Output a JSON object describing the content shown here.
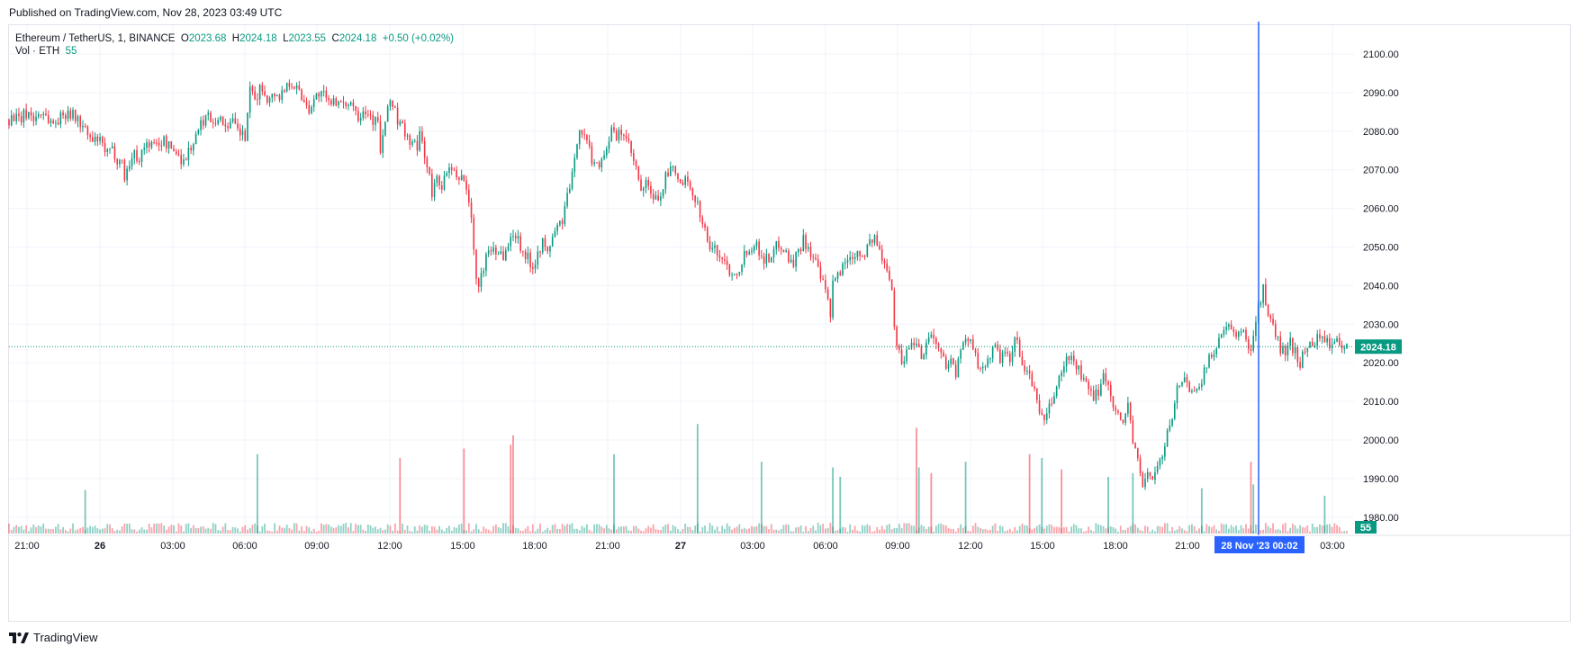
{
  "published": "Published on TradingView.com, Nov 28, 2023 03:49 UTC",
  "footer": {
    "brand": "TradingView",
    "logo_icon": "tradingview-logo-icon"
  },
  "legend": {
    "symbol": "Ethereum / TetherUS, 1, BINANCE",
    "open_label": "O",
    "open": "2023.68",
    "high_label": "H",
    "high": "2024.18",
    "low_label": "L",
    "low": "2023.55",
    "close_label": "C",
    "close": "2024.18",
    "change": "+0.50 (+0.02%)",
    "vol_label": "Vol · ETH",
    "vol_value": "55"
  },
  "colors": {
    "up": "#089981",
    "down": "#f23645",
    "crosshair": "#2962ff",
    "grid": "#f0f3fa",
    "text": "#131722"
  },
  "chart_data": {
    "type": "candlestick",
    "interval": "1 minute",
    "y_axis": {
      "ticks": [
        "1980.00",
        "1990.00",
        "2000.00",
        "2010.00",
        "2020.00",
        "2030.00",
        "2040.00",
        "2050.00",
        "2060.00",
        "2070.00",
        "2080.00",
        "2090.00",
        "2100.00"
      ],
      "min": 1975,
      "max": 2104,
      "side": "right"
    },
    "x_axis": {
      "ticks": [
        "21:00",
        "26",
        "03:00",
        "06:00",
        "09:00",
        "12:00",
        "15:00",
        "18:00",
        "21:00",
        "27",
        "03:00",
        "06:00",
        "09:00",
        "12:00",
        "15:00",
        "18:00",
        "21:00",
        "03:00"
      ],
      "bold": [
        "26",
        "27"
      ]
    },
    "last_price": "2024.18",
    "last_volume": "55",
    "crosshair_label": "28 Nov '23   00:02",
    "price_path": [
      [
        0,
        2083
      ],
      [
        2,
        2084
      ],
      [
        4,
        2082.5
      ],
      [
        6,
        2084
      ],
      [
        8,
        2085
      ],
      [
        10,
        2083
      ],
      [
        12,
        2084.5
      ],
      [
        14,
        2085
      ],
      [
        16,
        2083
      ],
      [
        18,
        2082
      ],
      [
        20,
        2083
      ],
      [
        22,
        2084
      ],
      [
        24,
        2085.5
      ],
      [
        26,
        2084
      ],
      [
        28,
        2083
      ],
      [
        30,
        2081
      ],
      [
        32,
        2079
      ],
      [
        34,
        2077
      ],
      [
        36,
        2078
      ],
      [
        38,
        2076
      ],
      [
        40,
        2074
      ],
      [
        42,
        2075
      ],
      [
        44,
        2073
      ],
      [
        46,
        2072
      ],
      [
        47,
        2068
      ],
      [
        49,
        2072
      ],
      [
        51,
        2074
      ],
      [
        53,
        2073
      ],
      [
        55,
        2076
      ],
      [
        57,
        2077
      ],
      [
        59,
        2076
      ],
      [
        61,
        2077
      ],
      [
        63,
        2077.5
      ],
      [
        65,
        2076
      ],
      [
        67,
        2075
      ],
      [
        69,
        2074
      ],
      [
        71,
        2072
      ],
      [
        73,
        2075
      ],
      [
        75,
        2077
      ],
      [
        77,
        2080
      ],
      [
        79,
        2083
      ],
      [
        81,
        2084
      ],
      [
        83,
        2083
      ],
      [
        85,
        2083.5
      ],
      [
        87,
        2082
      ],
      [
        89,
        2082
      ],
      [
        91,
        2082
      ],
      [
        93,
        2080
      ],
      [
        95,
        2079
      ],
      [
        96,
        2078
      ],
      [
        97,
        2085
      ],
      [
        98,
        2090
      ],
      [
        100,
        2088
      ],
      [
        102,
        2091
      ],
      [
        104,
        2090
      ],
      [
        106,
        2088
      ],
      [
        108,
        2090
      ],
      [
        110,
        2089
      ],
      [
        112,
        2091
      ],
      [
        114,
        2093
      ],
      [
        116,
        2092
      ],
      [
        118,
        2090
      ],
      [
        120,
        2088
      ],
      [
        122,
        2086
      ],
      [
        124,
        2088
      ],
      [
        126,
        2090
      ],
      [
        128,
        2089
      ],
      [
        130,
        2087
      ],
      [
        132,
        2089
      ],
      [
        134,
        2087
      ],
      [
        136,
        2086
      ],
      [
        138,
        2088
      ],
      [
        140,
        2087
      ],
      [
        142,
        2084
      ],
      [
        144,
        2086
      ],
      [
        146,
        2085
      ],
      [
        148,
        2083
      ],
      [
        150,
        2082
      ],
      [
        151,
        2075
      ],
      [
        153,
        2082
      ],
      [
        155,
        2088
      ],
      [
        157,
        2086
      ],
      [
        158,
        2082
      ],
      [
        160,
        2081
      ],
      [
        162,
        2078
      ],
      [
        164,
        2077
      ],
      [
        166,
        2075
      ],
      [
        167,
        2080
      ],
      [
        169,
        2074
      ],
      [
        171,
        2068
      ],
      [
        172,
        2063
      ],
      [
        174,
        2068
      ],
      [
        176,
        2066
      ],
      [
        178,
        2069
      ],
      [
        180,
        2070
      ],
      [
        182,
        2067
      ],
      [
        184,
        2069
      ],
      [
        186,
        2065
      ],
      [
        188,
        2058
      ],
      [
        189,
        2048
      ],
      [
        190,
        2043
      ],
      [
        191,
        2039
      ],
      [
        193,
        2045
      ],
      [
        195,
        2049
      ],
      [
        197,
        2050
      ],
      [
        199,
        2049
      ],
      [
        201,
        2048
      ],
      [
        203,
        2050
      ],
      [
        205,
        2054
      ],
      [
        207,
        2052
      ],
      [
        209,
        2049
      ],
      [
        211,
        2047
      ],
      [
        213,
        2045
      ],
      [
        215,
        2049
      ],
      [
        217,
        2051
      ],
      [
        219,
        2048
      ],
      [
        221,
        2053
      ],
      [
        223,
        2055
      ],
      [
        225,
        2057
      ],
      [
        227,
        2063
      ],
      [
        229,
        2068
      ],
      [
        230,
        2072
      ],
      [
        231,
        2078
      ],
      [
        232,
        2081
      ],
      [
        233,
        2080
      ],
      [
        235,
        2077
      ],
      [
        237,
        2073
      ],
      [
        239,
        2071
      ],
      [
        241,
        2073
      ],
      [
        243,
        2076
      ],
      [
        245,
        2080
      ],
      [
        247,
        2078
      ],
      [
        249,
        2080
      ],
      [
        251,
        2078
      ],
      [
        253,
        2074
      ],
      [
        255,
        2070
      ],
      [
        257,
        2064
      ],
      [
        259,
        2066
      ],
      [
        261,
        2064
      ],
      [
        263,
        2062
      ],
      [
        265,
        2064
      ],
      [
        267,
        2068
      ],
      [
        269,
        2070
      ],
      [
        271,
        2069
      ],
      [
        273,
        2066
      ],
      [
        275,
        2067
      ],
      [
        277,
        2064
      ],
      [
        279,
        2063
      ],
      [
        281,
        2059
      ],
      [
        283,
        2054
      ],
      [
        285,
        2050
      ],
      [
        287,
        2049
      ],
      [
        289,
        2048
      ],
      [
        291,
        2046
      ],
      [
        293,
        2044
      ],
      [
        295,
        2043
      ],
      [
        297,
        2045
      ],
      [
        299,
        2048
      ],
      [
        301,
        2050
      ],
      [
        303,
        2051
      ],
      [
        305,
        2049
      ],
      [
        307,
        2047
      ],
      [
        309,
        2047
      ],
      [
        311,
        2049
      ],
      [
        313,
        2051
      ],
      [
        315,
        2050
      ],
      [
        317,
        2047
      ],
      [
        319,
        2046
      ],
      [
        321,
        2049
      ],
      [
        323,
        2052
      ],
      [
        325,
        2050
      ],
      [
        327,
        2047
      ],
      [
        329,
        2044
      ],
      [
        331,
        2040
      ],
      [
        333,
        2036
      ],
      [
        334,
        2032
      ],
      [
        335,
        2040
      ],
      [
        337,
        2043
      ],
      [
        339,
        2045
      ],
      [
        341,
        2047
      ],
      [
        343,
        2048
      ],
      [
        345,
        2049
      ],
      [
        347,
        2048
      ],
      [
        349,
        2050
      ],
      [
        351,
        2052
      ],
      [
        353,
        2051
      ],
      [
        354,
        2049
      ],
      [
        355,
        2046
      ],
      [
        357,
        2045
      ],
      [
        358,
        2043
      ],
      [
        359,
        2040
      ],
      [
        360,
        2030
      ],
      [
        361,
        2025
      ],
      [
        363,
        2020
      ],
      [
        365,
        2023
      ],
      [
        367,
        2025
      ],
      [
        369,
        2026
      ],
      [
        371,
        2022
      ],
      [
        373,
        2025
      ],
      [
        375,
        2028
      ],
      [
        377,
        2025
      ],
      [
        379,
        2022
      ],
      [
        381,
        2020
      ],
      [
        383,
        2021
      ],
      [
        385,
        2017
      ],
      [
        387,
        2023
      ],
      [
        389,
        2025
      ],
      [
        391,
        2027
      ],
      [
        393,
        2023
      ],
      [
        395,
        2017
      ],
      [
        397,
        2020
      ],
      [
        399,
        2022
      ],
      [
        401,
        2024
      ],
      [
        403,
        2021
      ],
      [
        405,
        2022
      ],
      [
        407,
        2020
      ],
      [
        409,
        2026
      ],
      [
        411,
        2023
      ],
      [
        413,
        2018
      ],
      [
        415,
        2016
      ],
      [
        417,
        2013
      ],
      [
        419,
        2008
      ],
      [
        421,
        2004
      ],
      [
        423,
        2008
      ],
      [
        425,
        2012
      ],
      [
        427,
        2016
      ],
      [
        429,
        2019
      ],
      [
        431,
        2022
      ],
      [
        433,
        2020
      ],
      [
        435,
        2018
      ],
      [
        437,
        2015
      ],
      [
        439,
        2013
      ],
      [
        441,
        2010
      ],
      [
        443,
        2013
      ],
      [
        445,
        2017
      ],
      [
        447,
        2014
      ],
      [
        449,
        2010
      ],
      [
        451,
        2006
      ],
      [
        453,
        2004
      ],
      [
        455,
        2010
      ],
      [
        457,
        2000
      ],
      [
        459,
        1994
      ],
      [
        461,
        1988
      ],
      [
        463,
        1992
      ],
      [
        465,
        1990
      ],
      [
        467,
        1993
      ],
      [
        469,
        1996
      ],
      [
        471,
        2001
      ],
      [
        473,
        2007
      ],
      [
        475,
        2013
      ],
      [
        477,
        2016
      ],
      [
        479,
        2015
      ],
      [
        481,
        2012
      ],
      [
        483,
        2014
      ],
      [
        485,
        2016
      ],
      [
        487,
        2019
      ],
      [
        489,
        2022
      ],
      [
        491,
        2025
      ],
      [
        493,
        2027
      ],
      [
        495,
        2029
      ],
      [
        497,
        2028
      ],
      [
        499,
        2026
      ],
      [
        501,
        2029
      ],
      [
        503,
        2026
      ],
      [
        505,
        2024
      ],
      [
        507,
        2031
      ],
      [
        509,
        2037
      ],
      [
        510,
        2039
      ],
      [
        511,
        2034
      ],
      [
        513,
        2031
      ],
      [
        515,
        2027
      ],
      [
        517,
        2024
      ],
      [
        519,
        2022
      ],
      [
        521,
        2025
      ],
      [
        523,
        2023
      ],
      [
        525,
        2020
      ],
      [
        527,
        2023
      ],
      [
        529,
        2025
      ],
      [
        531,
        2026
      ],
      [
        533,
        2027
      ],
      [
        535,
        2026
      ],
      [
        537,
        2025
      ],
      [
        539,
        2024
      ],
      [
        541,
        2026
      ],
      [
        543,
        2023.5
      ],
      [
        544,
        2024.18
      ]
    ],
    "volume_spikes": [
      [
        31,
        23,
        "up"
      ],
      [
        101,
        42,
        "up"
      ],
      [
        159,
        40,
        "down"
      ],
      [
        185,
        45,
        "down"
      ],
      [
        204,
        47,
        "down"
      ],
      [
        205,
        52,
        "down"
      ],
      [
        246,
        42,
        "up"
      ],
      [
        280,
        58,
        "up"
      ],
      [
        306,
        38,
        "up"
      ],
      [
        335,
        35,
        "up"
      ],
      [
        338,
        30,
        "up"
      ],
      [
        369,
        56,
        "down"
      ],
      [
        370,
        35,
        "up"
      ],
      [
        375,
        32,
        "down"
      ],
      [
        389,
        38,
        "up"
      ],
      [
        415,
        42,
        "down"
      ],
      [
        420,
        40,
        "up"
      ],
      [
        428,
        34,
        "down"
      ],
      [
        447,
        30,
        "up"
      ],
      [
        457,
        32,
        "up"
      ],
      [
        485,
        24,
        "up"
      ],
      [
        505,
        38,
        "down"
      ],
      [
        506,
        26,
        "up"
      ],
      [
        535,
        20,
        "up"
      ]
    ]
  }
}
